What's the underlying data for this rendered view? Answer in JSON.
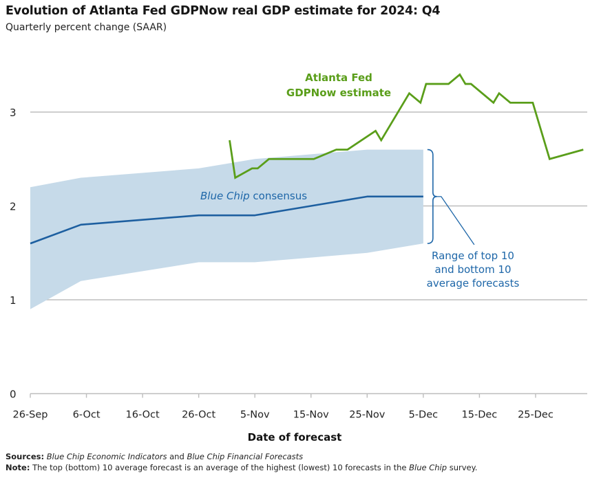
{
  "title": "Evolution of Atlanta Fed GDPNow real GDP estimate for 2024: Q4",
  "subtitle": "Quarterly percent change (SAAR)",
  "footer": {
    "sources_label": "Sources:",
    "sources_text_1": "Blue Chip Economic Indicators",
    "sources_text_2": " and ",
    "sources_text_3": "Blue Chip Financial Forecasts",
    "note_label": "Note:",
    "note_text_1": " The top (bottom) 10 average forecast is an average of the highest (lowest) 10 forecasts in the ",
    "note_text_2": "Blue Chip",
    "note_text_3": " survey."
  },
  "colors": {
    "gdpnow": "#5a9e1a",
    "consensus": "#1d5fa0",
    "band": "#c6dae9",
    "grid": "#bdbdbd",
    "annotation_blue": "#1d66a8"
  },
  "chart_data": {
    "type": "line",
    "title": "Evolution of Atlanta Fed GDPNow real GDP estimate for 2024: Q4",
    "subtitle": "Quarterly percent change (SAAR)",
    "xlabel": "Date of forecast",
    "ylabel": "",
    "ylim": [
      0,
      3.5
    ],
    "yticks": [
      0,
      1,
      2,
      3
    ],
    "x_start": "26-Sep",
    "xlim_days": [
      0,
      99
    ],
    "xticks": [
      {
        "label": "26-Sep",
        "day": 0
      },
      {
        "label": "6-Oct",
        "day": 10
      },
      {
        "label": "16-Oct",
        "day": 20
      },
      {
        "label": "26-Oct",
        "day": 30
      },
      {
        "label": "5-Nov",
        "day": 40
      },
      {
        "label": "15-Nov",
        "day": 50
      },
      {
        "label": "25-Nov",
        "day": 60
      },
      {
        "label": "5-Dec",
        "day": 70
      },
      {
        "label": "15-Dec",
        "day": 80
      },
      {
        "label": "25-Dec",
        "day": 90
      }
    ],
    "grid": true,
    "series": [
      {
        "name": "Atlanta Fed GDPNow estimate",
        "kind": "line",
        "days": [
          35.5,
          36.5,
          39.5,
          40.5,
          42.5,
          50.5,
          54.5,
          56.5,
          61.5,
          62.5,
          67.5,
          69.5,
          70.5,
          74.5,
          76.5,
          77.5,
          78.5,
          82.5,
          83.5,
          85.5,
          89.5,
          92.5,
          98.5
        ],
        "values": [
          2.7,
          2.3,
          2.4,
          2.4,
          2.5,
          2.5,
          2.6,
          2.6,
          2.8,
          2.7,
          3.2,
          3.1,
          3.3,
          3.3,
          3.4,
          3.3,
          3.3,
          3.1,
          3.2,
          3.1,
          3.1,
          2.5,
          2.6
        ]
      },
      {
        "name": "Blue Chip consensus",
        "kind": "line",
        "days": [
          0,
          9,
          30,
          40,
          50,
          60,
          70
        ],
        "values": [
          1.6,
          1.8,
          1.9,
          1.9,
          2.0,
          2.1,
          2.1
        ]
      },
      {
        "name": "Range of top 10 and bottom 10 average forecasts",
        "kind": "band",
        "days": [
          0,
          9,
          30,
          40,
          50,
          60,
          70
        ],
        "upper": [
          2.2,
          2.3,
          2.4,
          2.5,
          2.55,
          2.6,
          2.6
        ],
        "lower": [
          0.9,
          1.2,
          1.4,
          1.4,
          1.45,
          1.5,
          1.6
        ]
      }
    ],
    "annotations": [
      {
        "text_lines": [
          "Atlanta Fed",
          "GDPNow estimate"
        ],
        "series": "gdpnow"
      },
      {
        "text_italic": "Blue Chip",
        "text": " consensus",
        "series": "consensus"
      },
      {
        "text_lines": [
          "Range of top 10",
          "and bottom 10",
          "average forecasts"
        ],
        "series": "band"
      }
    ]
  }
}
